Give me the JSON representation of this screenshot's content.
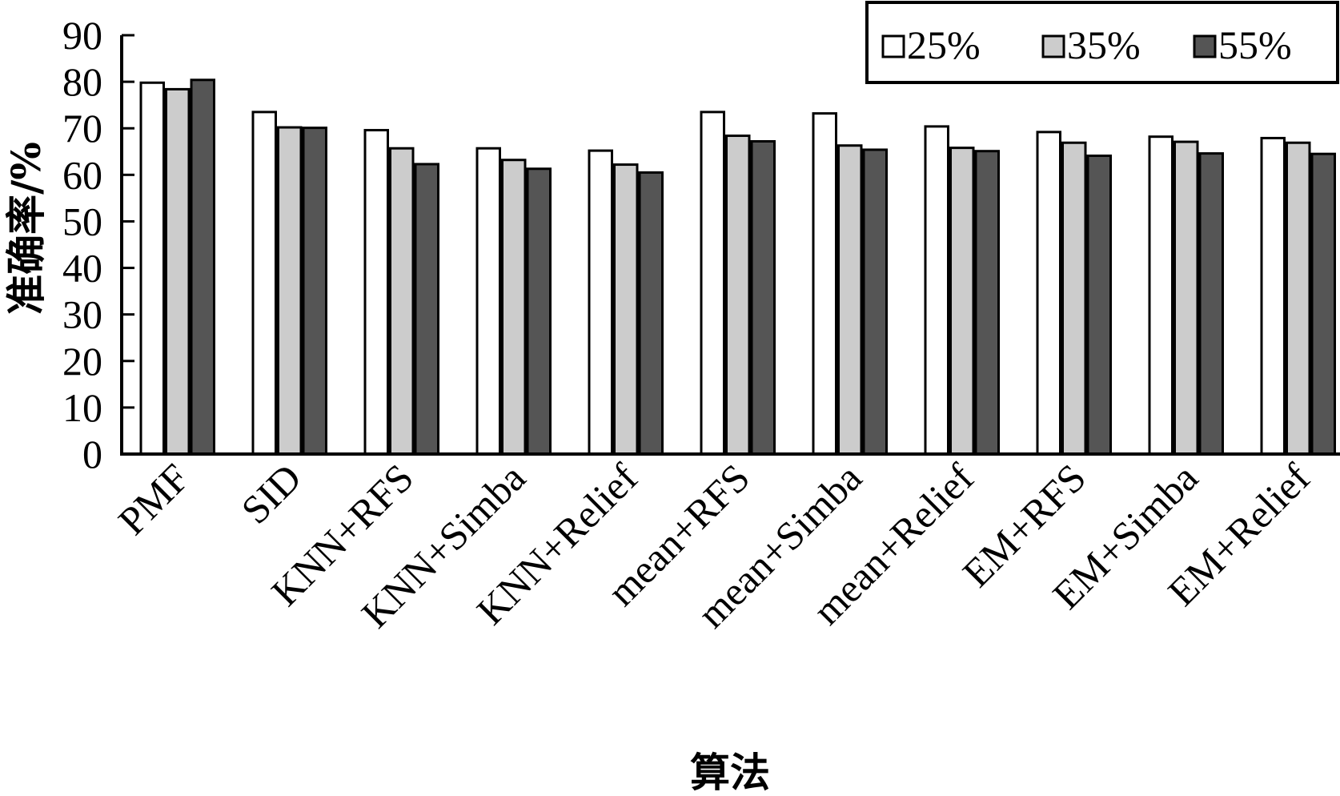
{
  "chart_data": {
    "type": "bar",
    "xlabel": "算法",
    "ylabel": "准确率/%",
    "ylim": [
      0,
      90
    ],
    "yticks": [
      0,
      10,
      20,
      30,
      40,
      50,
      60,
      70,
      80,
      90
    ],
    "grid": false,
    "legend_position": "top-right",
    "categories": [
      "PMF",
      "SID",
      "KNN+RFS",
      "KNN+Simba",
      "KNN+Relief",
      "mean+RFS",
      "mean+Simba",
      "mean+Relief",
      "EM+RFS",
      "EM+Simba",
      "EM+Relief"
    ],
    "series": [
      {
        "name": "25%",
        "color": "#ffffff",
        "values": [
          79.8,
          73.5,
          69.6,
          65.7,
          65.2,
          73.5,
          73.2,
          70.4,
          69.2,
          68.2,
          67.9
        ]
      },
      {
        "name": "35%",
        "color": "#cccccc",
        "values": [
          78.4,
          70.2,
          65.7,
          63.2,
          62.2,
          68.4,
          66.3,
          65.8,
          66.9,
          67.1,
          66.9
        ]
      },
      {
        "name": "55%",
        "color": "#555555",
        "values": [
          80.4,
          70.1,
          62.3,
          61.3,
          60.5,
          67.2,
          65.4,
          65.1,
          64.1,
          64.6,
          64.5
        ]
      }
    ]
  }
}
